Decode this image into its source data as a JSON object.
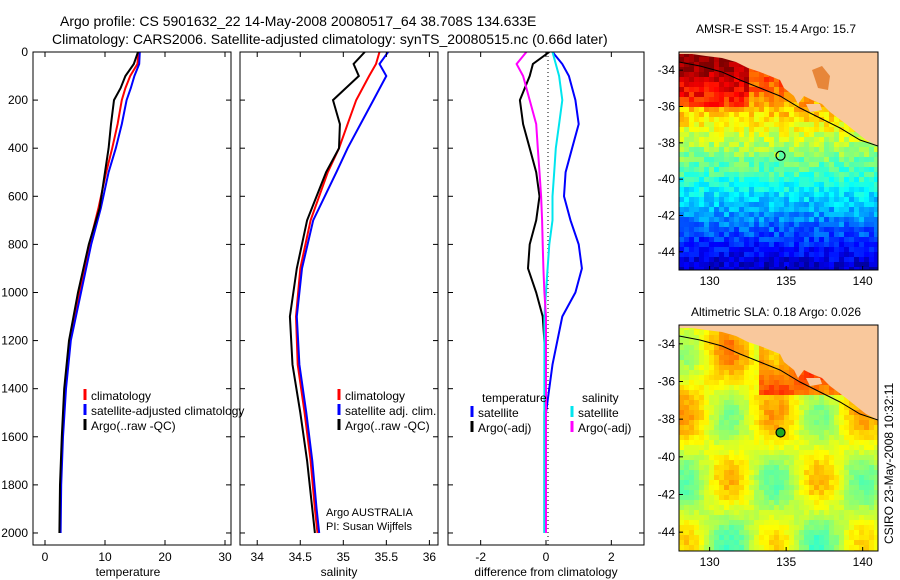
{
  "header": {
    "line1": "Argo profile: CS 5901632_22 14-May-2008 20080517_64 38.708S 134.633E",
    "line2": "Climatology: CARS2006. Satellite-adjusted climatology: synTS_20080515.nc (0.66d later)"
  },
  "footer": {
    "argo": "Argo AUSTRALIA",
    "pi": "PI: Susan Wijffels",
    "credit": "CSIRO 23-May-2008 10:32:11"
  },
  "colors": {
    "climatology": "#ff0000",
    "satellite": "#0000ff",
    "argo": "#000000",
    "sat_salinity": "#00e5ee",
    "argo_salinity": "#ff00ff",
    "land": "#f9c89c"
  },
  "chart_data": [
    {
      "type": "line",
      "id": "temperature",
      "xlabel": "temperature",
      "ylabel": "",
      "xlim": [
        -2,
        31
      ],
      "ylim": [
        2050,
        0
      ],
      "xticks": [
        0,
        10,
        20,
        30
      ],
      "yticks": [
        0,
        200,
        400,
        600,
        800,
        1000,
        1200,
        1400,
        1600,
        1800,
        2000
      ],
      "legend": [
        {
          "label": "climatology",
          "color": "#ff0000"
        },
        {
          "label": "satellite-adjusted climatology",
          "color": "#0000ff"
        },
        {
          "label": "Argo(..raw -QC)",
          "color": "#000000"
        }
      ],
      "series": [
        {
          "name": "climatology",
          "color": "#ff0000",
          "x": [
            15.6,
            15.4,
            14.2,
            13.4,
            12.8,
            12.1,
            11.2,
            10.2,
            8.9,
            7.4,
            5.8,
            4.2,
            3.4,
            2.9,
            2.6,
            2.5
          ],
          "y": [
            0,
            50,
            100,
            150,
            200,
            300,
            400,
            500,
            650,
            800,
            1000,
            1200,
            1400,
            1600,
            1800,
            2000
          ]
        },
        {
          "name": "satellite-adjusted climatology",
          "color": "#0000ff",
          "x": [
            15.8,
            15.7,
            14.9,
            14.3,
            13.6,
            12.8,
            11.8,
            10.6,
            9.3,
            7.7,
            6.0,
            4.3,
            3.5,
            3.0,
            2.7,
            2.6
          ],
          "y": [
            0,
            50,
            100,
            150,
            200,
            300,
            400,
            500,
            650,
            800,
            1000,
            1200,
            1400,
            1600,
            1800,
            2000
          ]
        },
        {
          "name": "Argo(..raw -QC)",
          "color": "#000000",
          "x": [
            15.5,
            14.8,
            13.4,
            12.6,
            11.5,
            11.0,
            10.6,
            10.0,
            9.1,
            7.3,
            5.5,
            4.0,
            3.2,
            2.8,
            2.5,
            2.4
          ],
          "y": [
            0,
            50,
            100,
            150,
            200,
            300,
            400,
            500,
            650,
            800,
            1000,
            1200,
            1400,
            1600,
            1800,
            2000
          ]
        }
      ]
    },
    {
      "type": "line",
      "id": "salinity",
      "xlabel": "salinity",
      "ylabel": "",
      "xlim": [
        33.8,
        36.1
      ],
      "ylim": [
        2050,
        0
      ],
      "xticks": [
        34,
        34.5,
        35,
        35.5,
        36
      ],
      "xticklabels": [
        "34",
        "34.5",
        "35",
        "35.5",
        "36"
      ],
      "legend": [
        {
          "label": "climatology",
          "color": "#ff0000"
        },
        {
          "label": "satellite adj. clim.",
          "color": "#0000ff"
        },
        {
          "label": "Argo(..raw -QC)",
          "color": "#000000"
        }
      ],
      "series": [
        {
          "name": "climatology",
          "color": "#ff0000",
          "x": [
            35.42,
            35.38,
            35.3,
            35.15,
            35.05,
            34.95,
            34.82,
            34.62,
            34.5,
            34.45,
            34.47,
            34.55,
            34.62,
            34.67,
            34.7
          ],
          "y": [
            0,
            50,
            100,
            200,
            300,
            400,
            500,
            700,
            900,
            1100,
            1300,
            1500,
            1700,
            1900,
            2000
          ]
        },
        {
          "name": "satellite adj. clim.",
          "color": "#0000ff",
          "x": [
            35.52,
            35.42,
            35.5,
            35.35,
            35.2,
            35.05,
            34.92,
            34.65,
            34.52,
            34.46,
            34.49,
            34.57,
            34.64,
            34.69,
            34.72
          ],
          "y": [
            0,
            50,
            100,
            200,
            300,
            400,
            500,
            700,
            900,
            1100,
            1300,
            1500,
            1700,
            1900,
            2000
          ]
        },
        {
          "name": "Argo(..raw -QC)",
          "color": "#000000",
          "x": [
            35.25,
            35.12,
            35.18,
            34.88,
            34.96,
            34.95,
            34.8,
            34.58,
            34.46,
            34.38,
            34.41,
            34.5,
            34.58,
            34.64,
            34.67
          ],
          "y": [
            0,
            50,
            100,
            200,
            300,
            400,
            500,
            700,
            900,
            1100,
            1300,
            1500,
            1700,
            1900,
            2000
          ]
        }
      ]
    },
    {
      "type": "line",
      "id": "difference",
      "xlabel": "difference from climatology",
      "ylabel": "",
      "xlim": [
        -3,
        3
      ],
      "ylim": [
        2050,
        0
      ],
      "xticks": [
        -2,
        0,
        2
      ],
      "legend_temperature": [
        {
          "label": "temperature",
          "color": null
        },
        {
          "label": "satellite",
          "color": "#0000ff"
        },
        {
          "label": "Argo(-adj)",
          "color": "#000000"
        }
      ],
      "legend_salinity": [
        {
          "label": "salinity",
          "color": null
        },
        {
          "label": "satellite",
          "color": "#00e5ee"
        },
        {
          "label": "Argo(-adj)",
          "color": "#ff00ff"
        }
      ],
      "series": [
        {
          "name": "temperature satellite",
          "color": "#0000ff",
          "x": [
            0.2,
            0.5,
            0.7,
            0.9,
            1.0,
            0.8,
            0.6,
            0.55,
            0.75,
            1.0,
            1.1,
            0.9,
            0.5,
            0.2,
            0.0,
            0.0,
            0.0
          ],
          "y": [
            0,
            50,
            100,
            200,
            300,
            400,
            500,
            600,
            700,
            800,
            900,
            1000,
            1100,
            1300,
            1500,
            1800,
            2000
          ]
        },
        {
          "name": "temperature Argo(-adj)",
          "color": "#000000",
          "x": [
            0.1,
            -0.4,
            -0.5,
            -0.8,
            -0.7,
            -0.5,
            -0.3,
            -0.2,
            -0.3,
            -0.5,
            -0.55,
            -0.3,
            -0.1,
            0.0,
            -0.05,
            -0.05,
            -0.05
          ],
          "y": [
            0,
            50,
            100,
            200,
            300,
            400,
            500,
            600,
            700,
            800,
            900,
            1000,
            1100,
            1300,
            1500,
            1800,
            2000
          ]
        },
        {
          "name": "salinity satellite",
          "color": "#00e5ee",
          "x": [
            0.2,
            0.3,
            0.4,
            0.5,
            0.4,
            0.3,
            0.25,
            0.2,
            0.2,
            0.1,
            0.05,
            0.0,
            -0.05,
            -0.05,
            -0.05,
            -0.05,
            -0.05
          ],
          "y": [
            0,
            50,
            100,
            200,
            300,
            400,
            500,
            600,
            700,
            800,
            900,
            1000,
            1100,
            1300,
            1500,
            1800,
            2000
          ]
        },
        {
          "name": "salinity Argo(-adj)",
          "color": "#ff00ff",
          "x": [
            -0.6,
            -0.9,
            -0.7,
            -0.5,
            -0.3,
            -0.25,
            -0.2,
            -0.15,
            -0.12,
            -0.1,
            -0.08,
            -0.05,
            0.0,
            0.0,
            0.0,
            0.0,
            0.0
          ],
          "y": [
            0,
            50,
            100,
            200,
            300,
            400,
            500,
            600,
            700,
            800,
            900,
            1000,
            1100,
            1300,
            1500,
            1800,
            2000
          ]
        }
      ]
    },
    {
      "type": "heatmap",
      "id": "sst-map",
      "title": "AMSR-E SST: 15.4 Argo: 15.7",
      "xlim": [
        128,
        141
      ],
      "ylim": [
        -45,
        -33
      ],
      "xticks": [
        130,
        135,
        140
      ],
      "yticks": [
        -34,
        -36,
        -38,
        -40,
        -42,
        -44
      ],
      "marker": {
        "lon": 134.633,
        "lat": -38.708
      }
    },
    {
      "type": "heatmap",
      "id": "sla-map",
      "title": "Altimetric SLA: 0.18 Argo: 0.026",
      "xlim": [
        128,
        141
      ],
      "ylim": [
        -45,
        -33
      ],
      "xticks": [
        130,
        135,
        140
      ],
      "yticks": [
        -34,
        -36,
        -38,
        -40,
        -42,
        -44
      ],
      "marker": {
        "lon": 134.633,
        "lat": -38.708
      }
    }
  ]
}
